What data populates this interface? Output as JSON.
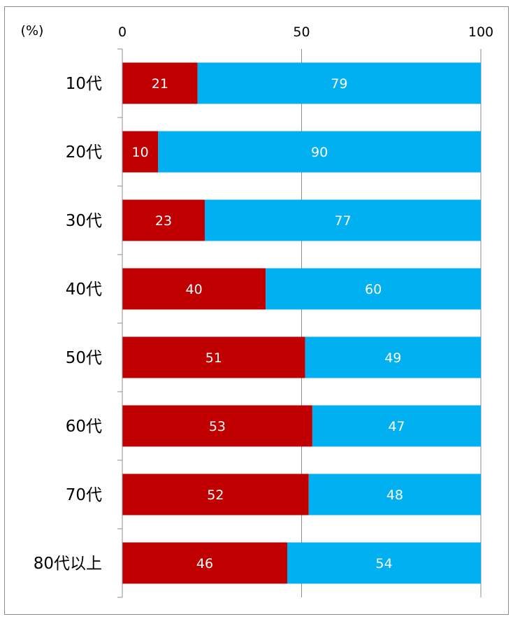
{
  "chart_data": {
    "type": "bar",
    "orientation": "horizontal",
    "stacked": true,
    "unit_label": "(%)",
    "xlim": [
      0,
      100
    ],
    "x_ticks": [
      "0",
      "50",
      "100"
    ],
    "grid": true,
    "categories": [
      "10代",
      "20代",
      "30代",
      "40代",
      "50代",
      "60代",
      "70代",
      "80代以上"
    ],
    "series": [
      {
        "color": "#c00000",
        "values": [
          21,
          10,
          23,
          40,
          51,
          53,
          52,
          46
        ]
      },
      {
        "color": "#00b0f0",
        "values": [
          79,
          90,
          77,
          60,
          49,
          47,
          48,
          54
        ]
      }
    ]
  }
}
